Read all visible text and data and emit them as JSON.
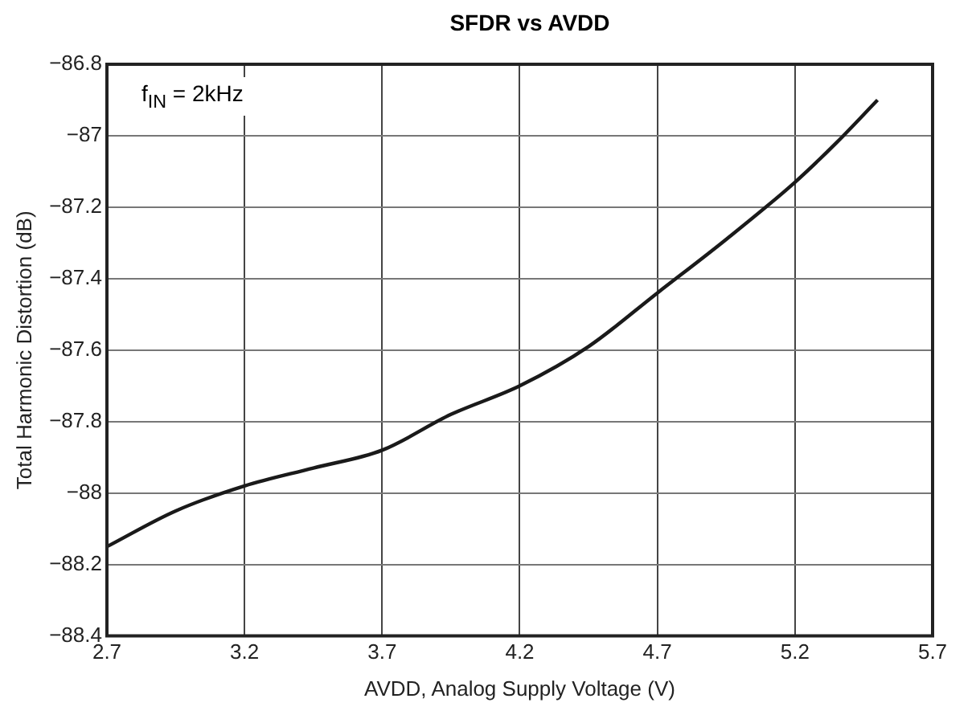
{
  "chart_data": {
    "type": "line",
    "title": "SFDR vs AVDD",
    "xlabel": "AVDD, Analog Supply Voltage (V)",
    "ylabel": "Total Harmonic Distortion (dB)",
    "annotations": [
      "f$_{IN}$ = 2kHz"
    ],
    "x": [
      2.7,
      2.95,
      3.2,
      3.45,
      3.7,
      3.95,
      4.2,
      4.45,
      4.7,
      4.95,
      5.2,
      5.35,
      5.5
    ],
    "series": [
      {
        "color": "#1a1a1a",
        "values": [
          -88.15,
          -88.05,
          -87.98,
          -87.93,
          -87.88,
          -87.78,
          -87.7,
          -87.59,
          -87.44,
          -87.29,
          -87.13,
          -87.02,
          -86.9
        ]
      }
    ],
    "xlim": [
      2.7,
      5.7
    ],
    "xticks": [
      2.7,
      3.2,
      3.7,
      4.2,
      4.7,
      5.2,
      5.7
    ],
    "ylim": [
      -88.4,
      -86.8
    ],
    "yticks": [
      -86.8,
      -87,
      -87.2,
      -87.4,
      -87.6,
      -87.8,
      -88,
      -88.2,
      -88.4
    ],
    "grid": true,
    "legend": false,
    "marker": "none",
    "line_style": "solid"
  }
}
